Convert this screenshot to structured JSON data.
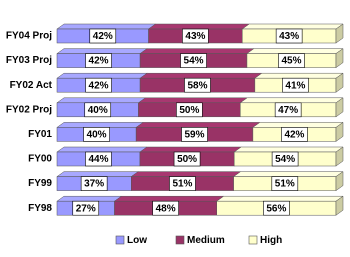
{
  "chart_data": {
    "type": "stacked-bar-100",
    "categories": [
      "FY04 Proj",
      "FY03 Proj",
      "FY02 Act",
      "FY02 Proj",
      "FY01",
      "FY00",
      "FY99",
      "FY98"
    ],
    "series": [
      {
        "name": "Low",
        "color": "#9999ff",
        "values": [
          42,
          42,
          42,
          40,
          40,
          44,
          37,
          27
        ],
        "value_labels": [
          "42%",
          "42%",
          "42%",
          "40%",
          "40%",
          "44%",
          "37%",
          "27%"
        ]
      },
      {
        "name": "Medium",
        "color": "#993366",
        "values": [
          43,
          54,
          58,
          50,
          59,
          50,
          51,
          48
        ],
        "value_labels": [
          "43%",
          "54%",
          "58%",
          "50%",
          "59%",
          "50%",
          "51%",
          "48%"
        ]
      },
      {
        "name": "High",
        "color": "#ffffcc",
        "values": [
          43,
          45,
          41,
          47,
          42,
          54,
          51,
          56
        ],
        "value_labels": [
          "43%",
          "45%",
          "41%",
          "47%",
          "42%",
          "54%",
          "51%",
          "56%"
        ]
      }
    ],
    "legend": "bottom"
  }
}
